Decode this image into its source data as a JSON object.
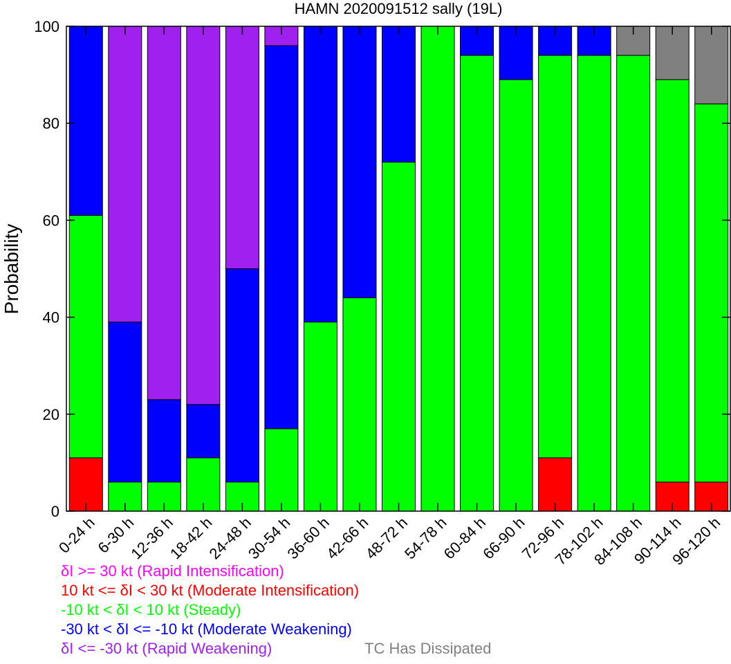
{
  "chart_data": {
    "type": "bar",
    "stacked": true,
    "title": "HAMN 2020091512 sally (19L)",
    "xlabel": "",
    "ylabel": "Probability",
    "ylim": [
      0,
      100
    ],
    "yticks": [
      0,
      20,
      40,
      60,
      80,
      100
    ],
    "grid": false,
    "categories": [
      "0-24 h",
      "6-30 h",
      "12-36 h",
      "18-42 h",
      "24-48 h",
      "30-54 h",
      "36-60 h",
      "42-66 h",
      "48-72 h",
      "54-78 h",
      "60-84 h",
      "66-90 h",
      "72-96 h",
      "78-102 h",
      "84-108 h",
      "90-114 h",
      "96-120 h"
    ],
    "series": [
      {
        "key": "mod_int",
        "color": "#ff0000",
        "values": [
          11,
          0,
          0,
          0,
          0,
          0,
          0,
          0,
          0,
          0,
          0,
          0,
          11,
          0,
          0,
          6,
          6
        ]
      },
      {
        "key": "steady",
        "color": "#00ff00",
        "values": [
          50,
          6,
          6,
          11,
          6,
          17,
          39,
          44,
          72,
          100,
          94,
          89,
          83,
          94,
          94,
          83,
          78
        ]
      },
      {
        "key": "mod_weak",
        "color": "#0000ff",
        "values": [
          39,
          33,
          17,
          11,
          44,
          79,
          61,
          56,
          28,
          0,
          6,
          11,
          6,
          6,
          0,
          0,
          0
        ]
      },
      {
        "key": "rapid_weak",
        "color": "#a020f0",
        "values": [
          0,
          61,
          77,
          78,
          50,
          4,
          0,
          0,
          0,
          0,
          0,
          0,
          0,
          0,
          0,
          0,
          0
        ]
      },
      {
        "key": "rapid_int",
        "color": "#ff00ff",
        "values": [
          0,
          0,
          0,
          0,
          0,
          0,
          0,
          0,
          0,
          0,
          0,
          0,
          0,
          0,
          0,
          0,
          0
        ]
      },
      {
        "key": "dissipated",
        "color": "#808080",
        "values": [
          0,
          0,
          0,
          0,
          0,
          0,
          0,
          0,
          0,
          0,
          0,
          0,
          0,
          0,
          6,
          11,
          16
        ]
      }
    ],
    "legend": [
      {
        "text": "δI >= 30 kt (Rapid Intensification)",
        "color": "#ff00ff"
      },
      {
        "text": "10 kt <= δI < 30 kt (Moderate Intensification)",
        "color": "#ff0000"
      },
      {
        "text": "-10 kt < δI < 10 kt (Steady)",
        "color": "#00ff00"
      },
      {
        "text": "-30 kt < δI <= -10 kt (Moderate Weakening)",
        "color": "#0000ff"
      },
      {
        "text": "δI <= -30 kt (Rapid Weakening)",
        "color": "#a020f0"
      },
      {
        "text": "TC Has Dissipated",
        "color": "#808080"
      }
    ]
  }
}
